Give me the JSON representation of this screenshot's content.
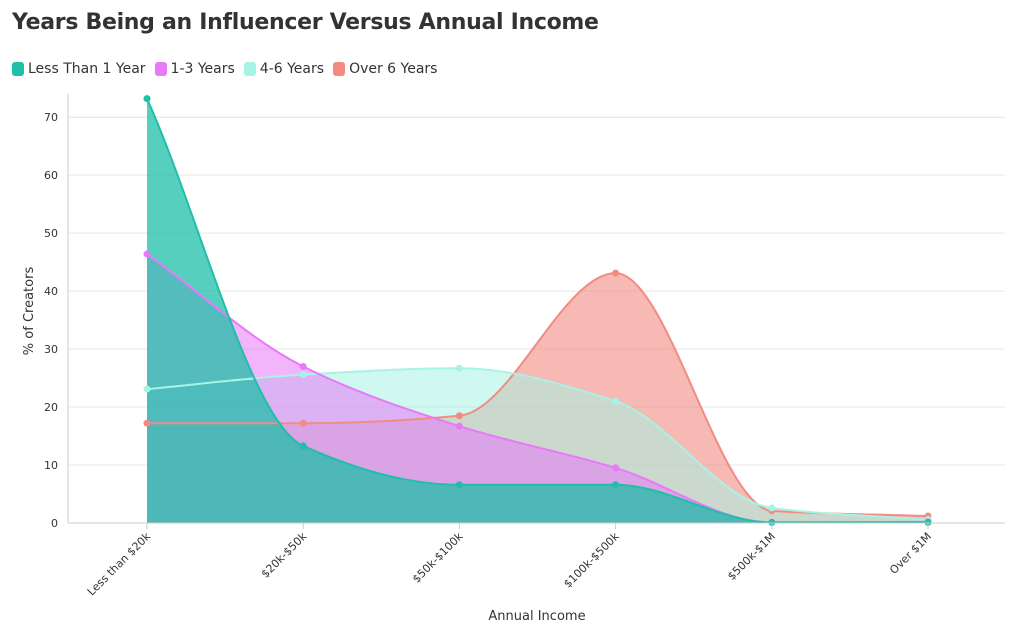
{
  "chart_data": {
    "type": "area",
    "title": "Years Being an Influencer Versus Annual Income",
    "xlabel": "Annual Income",
    "ylabel": "% of Creators",
    "categories": [
      "Less than $20k",
      "$20k-$50k",
      "$50k-$100k",
      "$100k-$500k",
      "$500k-$1M",
      "Over $1M"
    ],
    "ylim": [
      0,
      74
    ],
    "yticks": [
      0,
      10,
      20,
      30,
      40,
      50,
      60,
      70
    ],
    "grid": true,
    "legend_position": "top-left",
    "series": [
      {
        "name": "Over 6 Years",
        "color": "#f28b82",
        "fill_opacity": 0.6,
        "values": [
          17.2,
          17.2,
          18.5,
          43.1,
          2.1,
          1.2
        ]
      },
      {
        "name": "4-6 Years",
        "color": "#a7f3e4",
        "fill_opacity": 0.55,
        "values": [
          23.1,
          25.6,
          26.7,
          21.0,
          2.6,
          0.6
        ]
      },
      {
        "name": "1-3 Years",
        "color": "#e879f9",
        "fill_opacity": 0.55,
        "values": [
          46.4,
          27.0,
          16.7,
          9.5,
          0.1,
          0.2
        ]
      },
      {
        "name": "Less Than 1 Year",
        "color": "#1fbfa8",
        "fill_opacity": 0.75,
        "values": [
          73.2,
          13.3,
          6.6,
          6.6,
          0.1,
          0.1
        ]
      }
    ],
    "legend": [
      {
        "name": "Less Than 1 Year",
        "color": "#1fbfa8"
      },
      {
        "name": "1-3 Years",
        "color": "#e879f9"
      },
      {
        "name": "4-6 Years",
        "color": "#a7f3e4"
      },
      {
        "name": "Over 6 Years",
        "color": "#f28b82"
      }
    ]
  }
}
